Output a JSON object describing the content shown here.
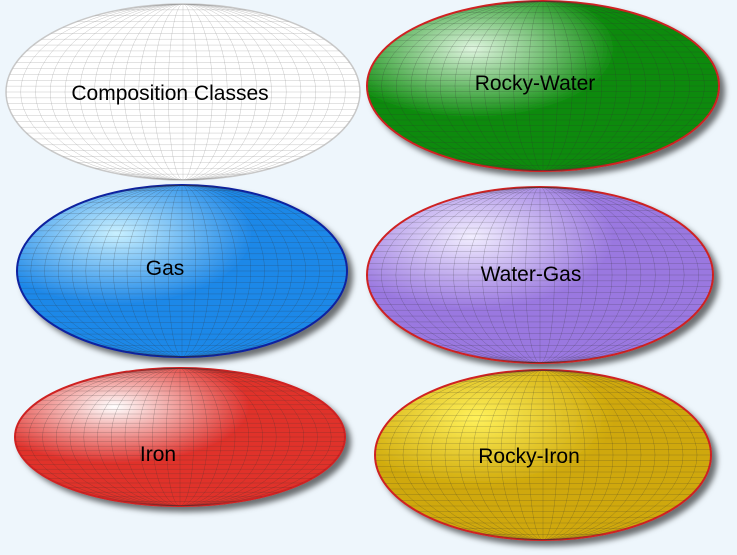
{
  "title": "Composition Classes",
  "classes": [
    {
      "label": "Rocky-Water",
      "color": "#0a8a0a",
      "highlight": "#dff5df",
      "outline": "#d02020"
    },
    {
      "label": "Gas",
      "color": "#1e88e8",
      "highlight": "#c9f0ff",
      "outline": "#1020a0"
    },
    {
      "label": "Water-Gas",
      "color": "#9a78e0",
      "highlight": "#f2eeff",
      "outline": "#d02020"
    },
    {
      "label": "Iron",
      "color": "#e0302a",
      "highlight": "#ffffff",
      "outline": "#d02020"
    },
    {
      "label": "Rocky-Iron",
      "color": "#cfa80a",
      "highlight": "#fff15a",
      "outline": "#d02020"
    }
  ],
  "colors": {
    "background": "#eef6fc",
    "grid_line": "#333333",
    "title_outline": "#c8c8c8"
  }
}
